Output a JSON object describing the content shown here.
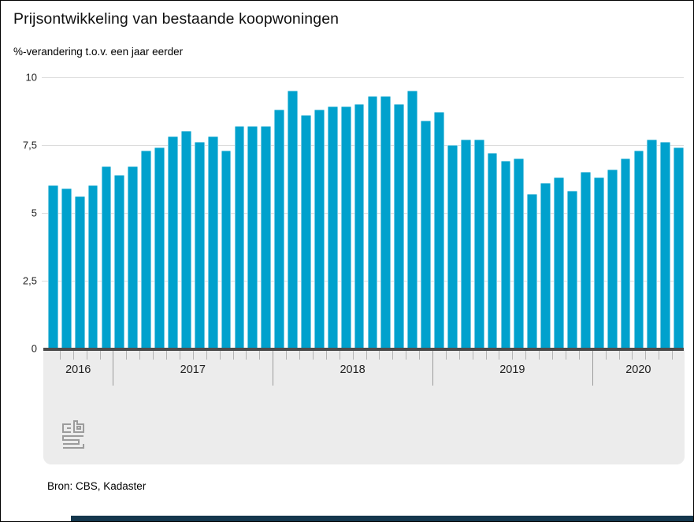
{
  "title": "Prijsontwikkeling van bestaande koopwoningen",
  "subtitle": "%-verandering t.o.v. een jaar eerder",
  "source": "Bron: CBS, Kadaster",
  "colors": {
    "bar": "#00a1cd",
    "axis_line": "#4c4c4c",
    "gridline": "#dcdcdc",
    "axis_band": "#ececec",
    "footer_bar": "#14374d",
    "logo": "#9c9c9c"
  },
  "y_axis": {
    "ticks": [
      {
        "label": "0",
        "value": 0
      },
      {
        "label": "2,5",
        "value": 2.5
      },
      {
        "label": "5",
        "value": 5
      },
      {
        "label": "7,5",
        "value": 7.5
      },
      {
        "label": "10",
        "value": 10
      }
    ]
  },
  "chart_data": {
    "type": "bar",
    "title": "Prijsontwikkeling van bestaande koopwoningen",
    "ylabel": "%-verandering t.o.v. een jaar eerder",
    "xlabel": "",
    "ylim": [
      0,
      10
    ],
    "grid": true,
    "legend": false,
    "series_name": "% verandering t.o.v. een jaar eerder",
    "x": [
      "2016-aug",
      "2016-sep",
      "2016-okt",
      "2016-nov",
      "2016-dec",
      "2017-jan",
      "2017-feb",
      "2017-mrt",
      "2017-apr",
      "2017-mei",
      "2017-jun",
      "2017-jul",
      "2017-aug",
      "2017-sep",
      "2017-okt",
      "2017-nov",
      "2017-dec",
      "2018-jan",
      "2018-feb",
      "2018-mrt",
      "2018-apr",
      "2018-mei",
      "2018-jun",
      "2018-jul",
      "2018-aug",
      "2018-sep",
      "2018-okt",
      "2018-nov",
      "2018-dec",
      "2019-jan",
      "2019-feb",
      "2019-mrt",
      "2019-apr",
      "2019-mei",
      "2019-jun",
      "2019-jul",
      "2019-aug",
      "2019-sep",
      "2019-okt",
      "2019-nov",
      "2019-dec",
      "2020-jan",
      "2020-feb",
      "2020-mrt",
      "2020-apr",
      "2020-mei",
      "2020-jun",
      "2020-jul"
    ],
    "values": [
      6.0,
      5.9,
      5.6,
      6.0,
      6.7,
      6.4,
      6.7,
      7.3,
      7.4,
      7.8,
      8.0,
      7.6,
      7.8,
      7.3,
      8.2,
      8.2,
      8.2,
      8.8,
      9.5,
      8.6,
      8.8,
      8.9,
      8.9,
      9.0,
      9.3,
      9.3,
      9.0,
      9.5,
      8.4,
      8.7,
      7.5,
      7.7,
      7.7,
      7.2,
      6.9,
      7.0,
      5.7,
      6.1,
      6.3,
      5.8,
      6.5,
      6.3,
      6.6,
      7.0,
      7.3,
      7.7,
      7.6,
      7.4
    ],
    "year_groups": [
      {
        "label": "2016",
        "months": 5
      },
      {
        "label": "2017",
        "months": 12
      },
      {
        "label": "2018",
        "months": 12
      },
      {
        "label": "2019",
        "months": 12
      },
      {
        "label": "2020",
        "months": 7
      }
    ]
  }
}
